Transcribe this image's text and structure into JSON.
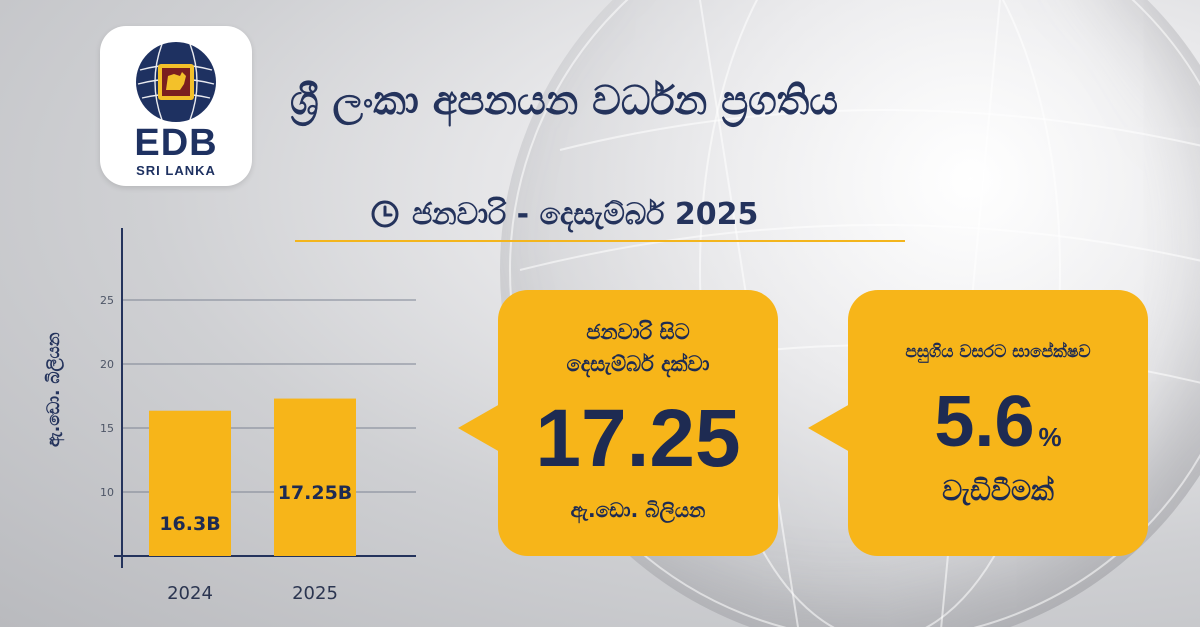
{
  "brand": {
    "logo_text": "EDB",
    "logo_sub": "SRI LANKA",
    "navy": "#1e3161",
    "gold": "#f7b519"
  },
  "header": {
    "title": "ශ්‍රී ලංකා අපනයන වර්ධන ප්‍රගතිය",
    "period_icon": "clock-icon",
    "period": "ජනවාරි - දෙසැම්බර් 2025"
  },
  "chart_data": {
    "type": "bar",
    "categories": [
      "2024",
      "2025"
    ],
    "values": [
      16.3,
      17.25
    ],
    "data_labels": [
      "16.3B",
      "17.25B"
    ],
    "ylabel": "ඇ.ඩො. බිලියන",
    "yticks": [
      10,
      15,
      20,
      25
    ],
    "grid": true,
    "bar_color": "#f7b519"
  },
  "callout_total": {
    "line1": "ජනවාරි සිට",
    "line2": "දෙසැම්බර් දක්වා",
    "value": "17.25",
    "unit": "ඇ.ඩො. බිලියන"
  },
  "callout_growth": {
    "label": "පසුගිය වසරට සාපේක්ෂව",
    "value": "5.6",
    "percent": "%",
    "suffix": "වැඩිවීමක්"
  }
}
